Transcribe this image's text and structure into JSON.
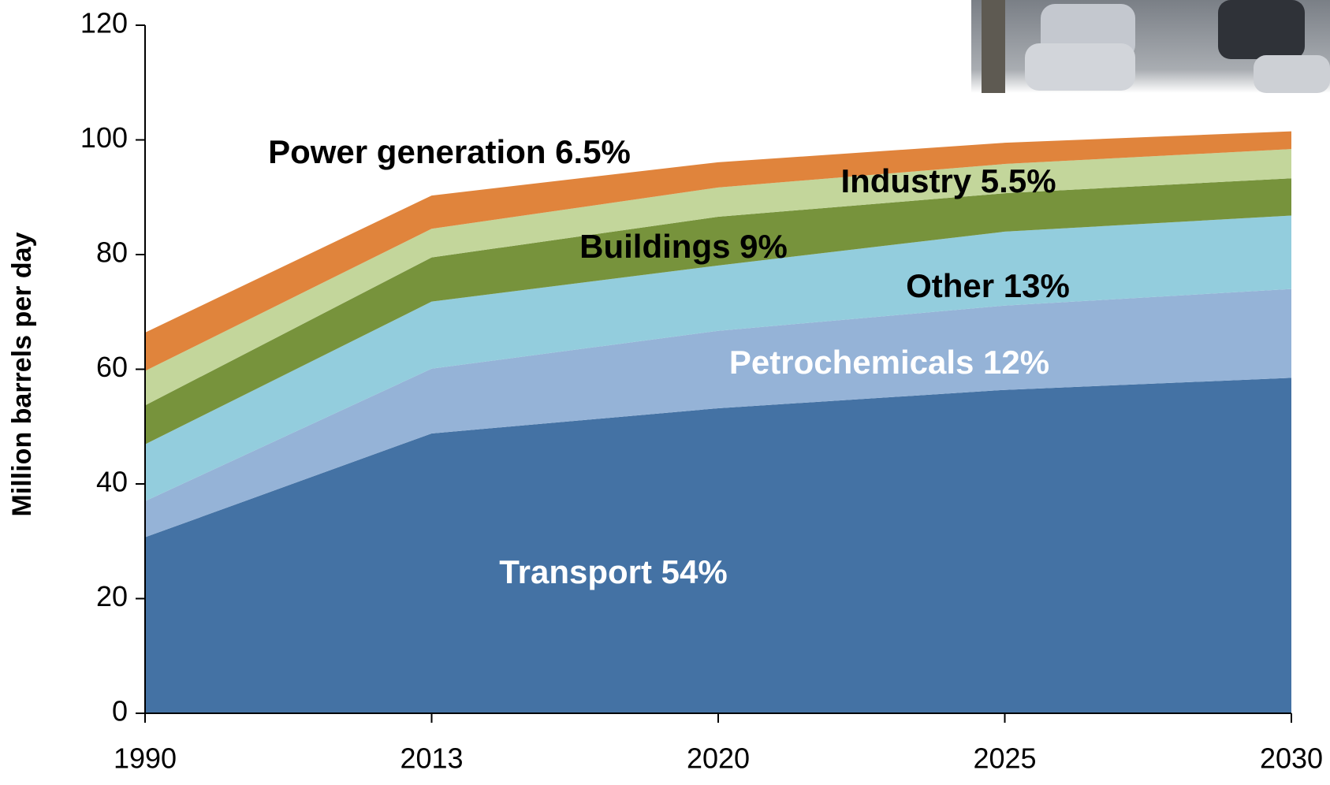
{
  "chart_data": {
    "type": "stacked_area",
    "y_label": "Million barrels per day",
    "categories": [
      "1990",
      "2013",
      "2020",
      "2025",
      "2030"
    ],
    "series": [
      {
        "name": "Transport  54%",
        "color": "#4472a4",
        "label_color": "#ffffff",
        "values": [
          30.7,
          48.8,
          53.2,
          56.4,
          58.5
        ]
      },
      {
        "name": "Petrochemicals  12%",
        "color": "#95b3d7",
        "label_color": "#ffffff",
        "values": [
          6.3,
          11.3,
          13.5,
          14.7,
          15.5
        ]
      },
      {
        "name": "Other 13%",
        "color": "#93cddd",
        "label_color": "#000000",
        "values": [
          9.9,
          11.7,
          11.4,
          12.9,
          12.8
        ]
      },
      {
        "name": "Buildings 9%",
        "color": "#77933c",
        "label_color": "#000000",
        "values": [
          6.8,
          7.7,
          8.5,
          6.7,
          6.5
        ]
      },
      {
        "name": "Industry 5.5%",
        "color": "#c3d69b",
        "label_color": "#000000",
        "values": [
          6.0,
          5.0,
          5.1,
          5.1,
          5.1
        ]
      },
      {
        "name": "Power generation 6.5%",
        "color": "#e0843c",
        "label_color": "#000000",
        "values": [
          6.7,
          5.8,
          4.4,
          3.7,
          3.1
        ]
      }
    ],
    "ylim": [
      0,
      120
    ],
    "yticks": [
      0,
      20,
      40,
      60,
      80,
      100,
      120
    ]
  }
}
